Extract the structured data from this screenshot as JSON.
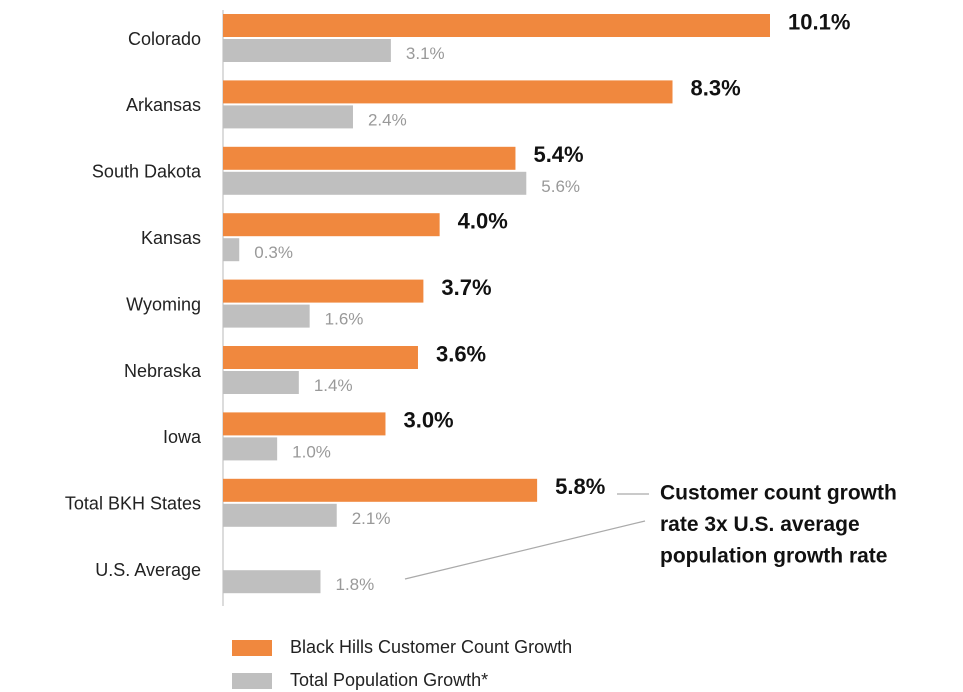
{
  "chart_data": {
    "type": "bar",
    "orientation": "horizontal",
    "categories": [
      "Colorado",
      "Arkansas",
      "South Dakota",
      "Kansas",
      "Wyoming",
      "Nebraska",
      "Iowa",
      "Total BKH States",
      "U.S. Average"
    ],
    "series": [
      {
        "name": "Black Hills Customer Count Growth",
        "color": "#f0883e",
        "values": [
          10.1,
          8.3,
          5.4,
          4.0,
          3.7,
          3.6,
          3.0,
          5.8,
          null
        ],
        "value_labels": [
          "10.1%",
          "8.3%",
          "5.4%",
          "4.0%",
          "3.7%",
          "3.6%",
          "3.0%",
          "5.8%",
          null
        ]
      },
      {
        "name": "Total Population Growth*",
        "color": "#bfbfbf",
        "values": [
          3.1,
          2.4,
          5.6,
          0.3,
          1.6,
          1.4,
          1.0,
          2.1,
          1.8
        ],
        "value_labels": [
          "3.1%",
          "2.4%",
          "5.6%",
          "0.3%",
          "1.6%",
          "1.4%",
          "1.0%",
          "2.1%",
          "1.8%"
        ]
      }
    ],
    "annotation": [
      "Customer count growth",
      "rate 3x U.S. average",
      "population growth rate"
    ]
  }
}
